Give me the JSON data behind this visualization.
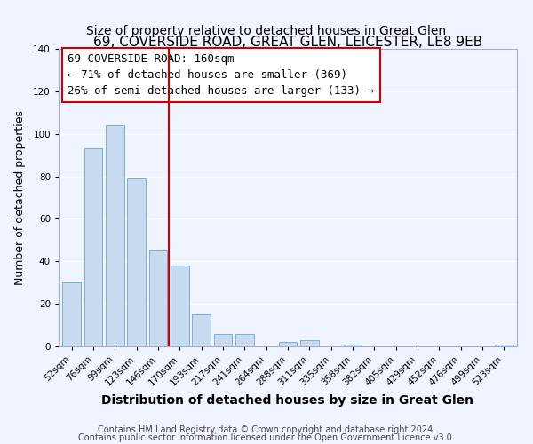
{
  "title": "69, COVERSIDE ROAD, GREAT GLEN, LEICESTER, LE8 9EB",
  "subtitle": "Size of property relative to detached houses in Great Glen",
  "xlabel": "Distribution of detached houses by size in Great Glen",
  "ylabel": "Number of detached properties",
  "bar_labels": [
    "52sqm",
    "76sqm",
    "99sqm",
    "123sqm",
    "146sqm",
    "170sqm",
    "193sqm",
    "217sqm",
    "241sqm",
    "264sqm",
    "288sqm",
    "311sqm",
    "335sqm",
    "358sqm",
    "382sqm",
    "405sqm",
    "429sqm",
    "452sqm",
    "476sqm",
    "499sqm",
    "523sqm"
  ],
  "bar_values": [
    30,
    93,
    104,
    79,
    45,
    38,
    15,
    6,
    6,
    0,
    2,
    3,
    0,
    1,
    0,
    0,
    0,
    0,
    0,
    0,
    1
  ],
  "bar_color": "#c8daf0",
  "bar_edge_color": "#7aafd4",
  "vline_x_idx": 5,
  "vline_color": "#cc0000",
  "ylim": [
    0,
    140
  ],
  "annotation_title": "69 COVERSIDE ROAD: 160sqm",
  "annotation_line1": "← 71% of detached houses are smaller (369)",
  "annotation_line2": "26% of semi-detached houses are larger (133) →",
  "footer1": "Contains HM Land Registry data © Crown copyright and database right 2024.",
  "footer2": "Contains public sector information licensed under the Open Government Licence v3.0.",
  "background_color": "#f0f4ff",
  "title_fontsize": 11,
  "subtitle_fontsize": 10,
  "xlabel_fontsize": 10,
  "ylabel_fontsize": 9,
  "tick_fontsize": 7.5,
  "annotation_fontsize": 9,
  "footer_fontsize": 7
}
